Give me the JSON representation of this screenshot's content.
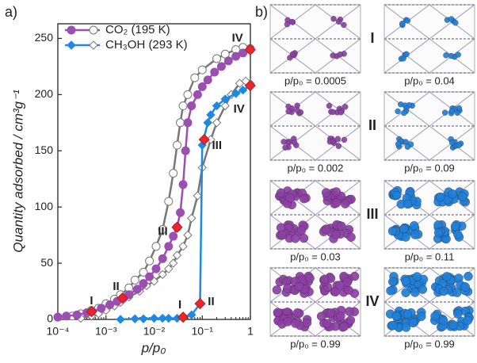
{
  "panel_labels": [
    "a)",
    "b)"
  ],
  "chart_data": {
    "type": "line",
    "x_label": "p/p₀",
    "y_label": "Quantity adsorbed / cm³g⁻¹",
    "log_x": true,
    "xlim": [
      0.0001,
      1
    ],
    "ylim": [
      0,
      263
    ],
    "xticks": [
      {
        "value": 0.0001,
        "label": "10⁻⁴"
      },
      {
        "value": 0.001,
        "label": "10⁻³"
      },
      {
        "value": 0.01,
        "label": "10⁻²"
      },
      {
        "value": 0.1,
        "label": "10⁻¹"
      },
      1
    ],
    "yticks": [
      0,
      50,
      100,
      150,
      200,
      250
    ],
    "desorption_color": "#777777",
    "series": [
      {
        "name": "CO₂ (195 K)",
        "color": "#9b4fb0",
        "marker": "circle",
        "x": [
          0.0001,
          0.00015,
          0.00025,
          0.0004,
          0.0005,
          0.0008,
          0.0012,
          0.0017,
          0.0023,
          0.003,
          0.0045,
          0.006,
          0.008,
          0.011,
          0.015,
          0.02,
          0.025,
          0.03,
          0.035,
          0.04,
          0.045,
          0.05,
          0.06,
          0.08,
          0.1,
          0.13,
          0.18,
          0.25,
          0.35,
          0.5,
          0.7,
          0.99
        ],
        "values": [
          2,
          3,
          4,
          6,
          7,
          10,
          13,
          16,
          19,
          22,
          27,
          32,
          38,
          45,
          54,
          65,
          74,
          82,
          95,
          120,
          150,
          175,
          190,
          200,
          207,
          213,
          220,
          225,
          230,
          234,
          237,
          240
        ],
        "desorption_x": [
          0.99,
          0.7,
          0.5,
          0.3,
          0.2,
          0.1,
          0.07,
          0.05,
          0.04,
          0.035,
          0.03,
          0.025,
          0.02,
          0.015,
          0.011,
          0.008,
          0.006,
          0.004,
          0.003,
          0.002,
          0.0015,
          0.001,
          0.0007,
          0.0005,
          0.0003,
          0.0002,
          0.0001
        ],
        "desorption_values": [
          241,
          242,
          240,
          236,
          232,
          222,
          215,
          200,
          190,
          175,
          155,
          130,
          105,
          80,
          65,
          52,
          42,
          35,
          28,
          22,
          18,
          14,
          10,
          8,
          5,
          3,
          2
        ]
      },
      {
        "name": "CH₃OH (293 K)",
        "color": "#1e88e5",
        "marker": "diamond",
        "x": [
          0.002,
          0.004,
          0.006,
          0.01,
          0.015,
          0.02,
          0.03,
          0.04,
          0.06,
          0.09,
          0.1,
          0.13,
          0.15,
          0.2,
          0.3,
          0.5,
          0.7,
          0.99
        ],
        "values": [
          0,
          0.5,
          0.5,
          1,
          1,
          1,
          1,
          2,
          4,
          14,
          155,
          175,
          182,
          190,
          196,
          201,
          204,
          208
        ],
        "desorption_x": [
          0.99,
          0.8,
          0.6,
          0.4,
          0.3,
          0.2,
          0.15,
          0.1,
          0.08,
          0.06,
          0.05,
          0.04,
          0.03,
          0.025,
          0.02,
          0.015,
          0.01,
          0.007,
          0.005,
          0.003,
          0.002,
          0.0015,
          0.001,
          0.0007,
          0.0005,
          0.0003
        ],
        "desorption_values": [
          210,
          212,
          210,
          200,
          190,
          175,
          160,
          135,
          110,
          90,
          75,
          65,
          57,
          50,
          45,
          40,
          34,
          30,
          25,
          20,
          15,
          12,
          8,
          5,
          3,
          1
        ]
      }
    ],
    "marker_color": "#e8262b",
    "markers": [
      {
        "label": "I",
        "x": 0.0005,
        "y": 7
      },
      {
        "label": "II",
        "x": 0.0022,
        "y": 19
      },
      {
        "label": "III",
        "x": 0.03,
        "y": 82
      },
      {
        "label": "IV",
        "x": 0.99,
        "y": 240
      },
      {
        "label": "I",
        "x": 0.04,
        "y": 2
      },
      {
        "label": "II",
        "x": 0.09,
        "y": 14
      },
      {
        "label": "III",
        "x": 0.11,
        "y": 160
      },
      {
        "label": "IV",
        "x": 0.99,
        "y": 208
      }
    ]
  },
  "panel_b": {
    "stages": [
      "I",
      "II",
      "III",
      "IV"
    ],
    "captions": [
      [
        "p/p₀ = 0.0005",
        "p/p₀ = 0.04"
      ],
      [
        "p/p₀ = 0.002",
        "p/p₀ = 0.09"
      ],
      [
        "p/p₀ = 0.03",
        "p/p₀ = 0.11"
      ],
      [
        "p/p₀ = 0.99",
        "p/p₀ = 0.99"
      ]
    ]
  }
}
